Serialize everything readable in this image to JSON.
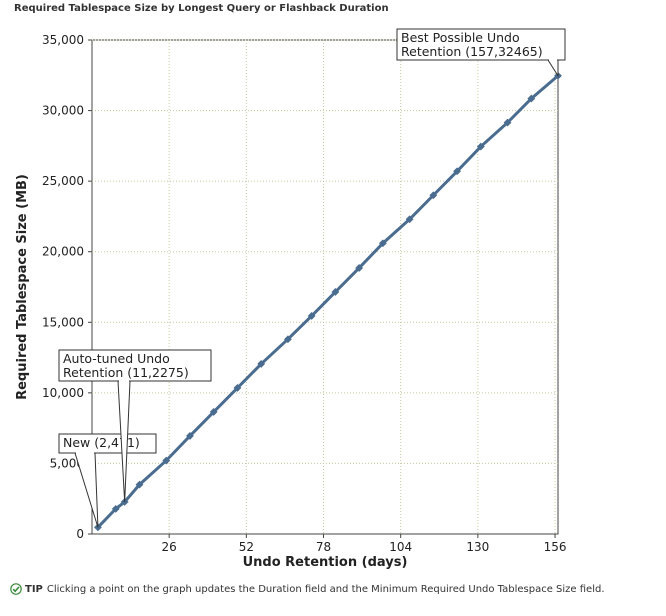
{
  "chart_data": {
    "type": "line",
    "title": "Required Tablespace Size by Longest Query or Flashback Duration",
    "xlabel": "Undo Retention (days)",
    "ylabel": "Required Tablespace Size (MB)",
    "xlim": [
      0,
      157
    ],
    "ylim": [
      0,
      35000
    ],
    "xticks": [
      26,
      52,
      78,
      104,
      130,
      156
    ],
    "yticks": [
      0,
      5000,
      10000,
      15000,
      20000,
      25000,
      30000,
      35000
    ],
    "xtick_labels": [
      "26",
      "52",
      "78",
      "104",
      "130",
      "156"
    ],
    "ytick_labels": [
      "0",
      "5,000",
      "10,000",
      "15,000",
      "20,000",
      "25,000",
      "30,000",
      "35,000"
    ],
    "grid": true,
    "series": [
      {
        "color": "#4a6c8f",
        "points": [
          {
            "x": 2,
            "y": 471
          },
          {
            "x": 8,
            "y": 1780
          },
          {
            "x": 11,
            "y": 2275
          },
          {
            "x": 16,
            "y": 3500
          },
          {
            "x": 25,
            "y": 5200
          },
          {
            "x": 33,
            "y": 6950
          },
          {
            "x": 41,
            "y": 8650
          },
          {
            "x": 49,
            "y": 10350
          },
          {
            "x": 57,
            "y": 12050
          },
          {
            "x": 66,
            "y": 13800
          },
          {
            "x": 74,
            "y": 15450
          },
          {
            "x": 82,
            "y": 17150
          },
          {
            "x": 90,
            "y": 18850
          },
          {
            "x": 98,
            "y": 20600
          },
          {
            "x": 107,
            "y": 22300
          },
          {
            "x": 115,
            "y": 24000
          },
          {
            "x": 123,
            "y": 25700
          },
          {
            "x": 131,
            "y": 27450
          },
          {
            "x": 140,
            "y": 29150
          },
          {
            "x": 148,
            "y": 30850
          },
          {
            "x": 157,
            "y": 32465
          }
        ]
      }
    ],
    "annotations": [
      {
        "lines": [
          "New (2,471)"
        ],
        "x": 2,
        "y": 471
      },
      {
        "lines": [
          "Auto-tuned Undo",
          "Retention (11,2275)"
        ],
        "x": 11,
        "y": 2275
      },
      {
        "lines": [
          "Best Possible Undo",
          "Retention (157,32465)"
        ],
        "x": 157,
        "y": 32465
      }
    ]
  },
  "tip": {
    "label": "TIP",
    "text": "Clicking a point on the graph updates the Duration field and the Minimum Required Undo Tablespace Size field.",
    "icon": "check-icon",
    "icon_color": "#3a8a3a"
  }
}
